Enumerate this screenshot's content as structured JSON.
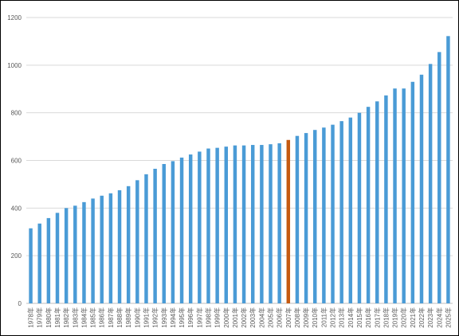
{
  "chart_data": {
    "type": "bar",
    "title": "",
    "xlabel": "",
    "ylabel": "",
    "ylim": [
      0,
      1200
    ],
    "yticks": [
      0,
      200,
      400,
      600,
      800,
      1000,
      1200
    ],
    "grid": true,
    "legend": "none",
    "bar_color": "#4a9bd6",
    "highlight_color": "#c55a11",
    "highlight_category": "2007年",
    "categories": [
      "1978年",
      "1979年",
      "1980年",
      "1981年",
      "1982年",
      "1983年",
      "1984年",
      "1985年",
      "1986年",
      "1987年",
      "1988年",
      "1989年",
      "1990年",
      "1991年",
      "1992年",
      "1993年",
      "1994年",
      "1995年",
      "1996年",
      "1997年",
      "1998年",
      "1999年",
      "2000年",
      "2001年",
      "2002年",
      "2003年",
      "2004年",
      "2005年",
      "2006年",
      "2007年",
      "2008年",
      "2009年",
      "2010年",
      "2011年",
      "2012年",
      "2013年",
      "2014年",
      "2015年",
      "2016年",
      "2017年",
      "2018年",
      "2019年",
      "2020年",
      "2021年",
      "2022年",
      "2023年",
      "2024年",
      "2025年"
    ],
    "values": [
      315,
      335,
      358,
      380,
      400,
      410,
      425,
      440,
      452,
      462,
      475,
      492,
      517,
      542,
      565,
      585,
      597,
      612,
      625,
      637,
      650,
      653,
      658,
      663,
      663,
      665,
      665,
      668,
      672,
      686,
      703,
      715,
      728,
      738,
      750,
      765,
      780,
      800,
      825,
      848,
      873,
      902,
      902,
      930,
      960,
      1005,
      1055,
      1122
    ]
  }
}
